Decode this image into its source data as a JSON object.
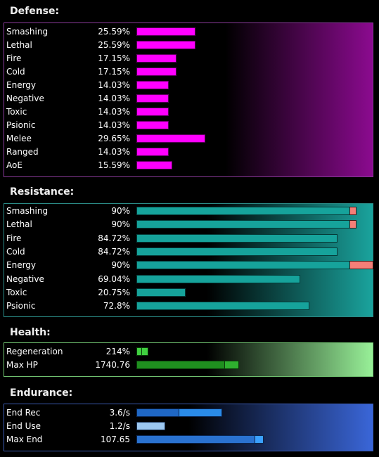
{
  "colors": {
    "defense": "#ff00ff",
    "resistance": "#16a39b",
    "resistance_overcap": "#f47f78",
    "health_regen": "#40d040",
    "health_hp": "#1f8f1f",
    "endurance": "#1f67c4",
    "endurance_pale": "#9dc8f0"
  },
  "defense": {
    "title": "Defense:",
    "rows": [
      {
        "label": "Smashing",
        "value": "25.59%",
        "level": 25.59
      },
      {
        "label": "Lethal",
        "value": "25.59%",
        "level": 25.59
      },
      {
        "label": "Fire",
        "value": "17.15%",
        "level": 17.15
      },
      {
        "label": "Cold",
        "value": "17.15%",
        "level": 17.15
      },
      {
        "label": "Energy",
        "value": "14.03%",
        "level": 14.03
      },
      {
        "label": "Negative",
        "value": "14.03%",
        "level": 14.03
      },
      {
        "label": "Toxic",
        "value": "14.03%",
        "level": 14.03
      },
      {
        "label": "Psionic",
        "value": "14.03%",
        "level": 14.03
      },
      {
        "label": "Melee",
        "value": "29.65%",
        "level": 29.65
      },
      {
        "label": "Ranged",
        "value": "14.03%",
        "level": 14.03
      },
      {
        "label": "AoE",
        "value": "15.59%",
        "level": 15.59
      }
    ]
  },
  "resistance": {
    "title": "Resistance:",
    "rows": [
      {
        "label": "Smashing",
        "value": "90%",
        "level": 90,
        "overcap": 3
      },
      {
        "label": "Lethal",
        "value": "90%",
        "level": 90,
        "overcap": 3
      },
      {
        "label": "Fire",
        "value": "84.72%",
        "level": 84.72,
        "overcap": 0
      },
      {
        "label": "Cold",
        "value": "84.72%",
        "level": 84.72,
        "overcap": 0
      },
      {
        "label": "Energy",
        "value": "90%",
        "level": 90,
        "overcap": 10
      },
      {
        "label": "Negative",
        "value": "69.04%",
        "level": 69.04,
        "overcap": 0
      },
      {
        "label": "Toxic",
        "value": "20.75%",
        "level": 20.75,
        "overcap": 0
      },
      {
        "label": "Psionic",
        "value": "72.8%",
        "level": 72.8,
        "overcap": 0
      }
    ]
  },
  "health": {
    "title": "Health:",
    "rows": [
      {
        "label": "Regeneration",
        "value": "214%"
      },
      {
        "label": "Max HP",
        "value": "1740.76"
      }
    ]
  },
  "endurance": {
    "title": "Endurance:",
    "rows": [
      {
        "label": "End Rec",
        "value": "3.6/s"
      },
      {
        "label": "End Use",
        "value": "1.2/s"
      },
      {
        "label": "Max End",
        "value": "107.65"
      }
    ]
  }
}
